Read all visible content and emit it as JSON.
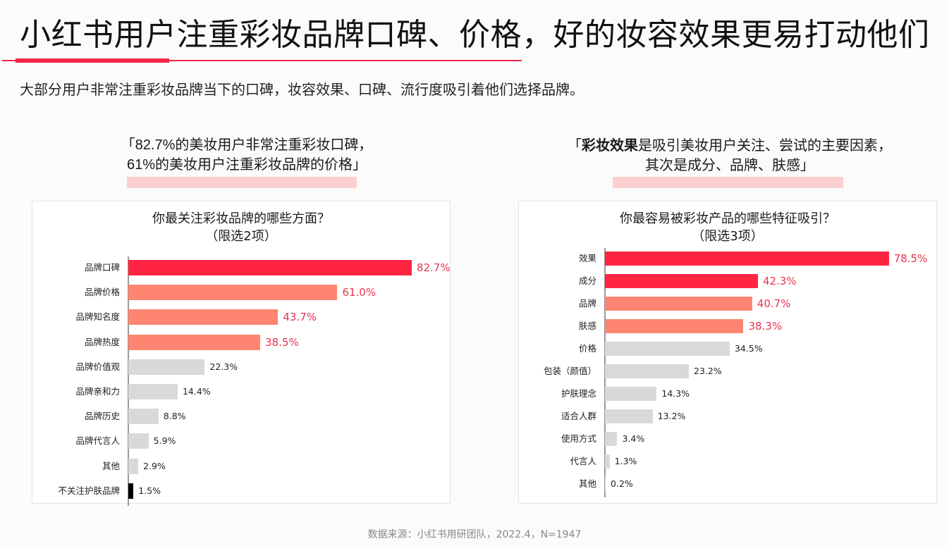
{
  "header": {
    "title": "小红书用户注重彩妆品牌口碑、价格，好的妆容效果更易打动他们",
    "subtitle": "大部分用户非常注重彩妆品牌当下的口碑，妆容效果、口碑、流行度吸引着他们选择品牌。",
    "accent_color": "#f0284a"
  },
  "quotes": {
    "left": {
      "line1": "「82.7%的美妆用户非常注重彩妆口碑，",
      "line2": "61%的美妆用户注重彩妆品牌的价格」"
    },
    "right": {
      "open": "「",
      "bold": "彩妆效果",
      "line1_rest": "是吸引美妆用户关注、尝试的主要因素，",
      "line2": "其次是成分、品牌、肤感」"
    }
  },
  "colors": {
    "top": "#ff2442",
    "high": "#fd8571",
    "low": "#d9d9d9",
    "none": "#000000",
    "value_hot": "#e8344e"
  },
  "chart_data": [
    {
      "type": "bar",
      "orientation": "horizontal",
      "title": "你最关注彩妆品牌的哪些方面？",
      "subtitle": "（限选2项）",
      "xlabel": "",
      "ylabel": "",
      "grid": false,
      "legend": "none",
      "categories": [
        "品牌口碑",
        "品牌价格",
        "品牌知名度",
        "品牌热度",
        "品牌价值观",
        "品牌亲和力",
        "品牌历史",
        "品牌代言人",
        "其他",
        "不关注护肤品牌"
      ],
      "values": [
        82.7,
        61.0,
        43.7,
        38.5,
        22.3,
        14.4,
        8.8,
        5.9,
        2.9,
        1.5
      ],
      "value_labels": [
        "82.7%",
        "61.0%",
        "43.7%",
        "38.5%",
        "22.3%",
        "14.4%",
        "8.8%",
        "5.9%",
        "2.9%",
        "1.5%"
      ],
      "bar_styles": [
        "top",
        "high",
        "high",
        "high",
        "low",
        "low",
        "low",
        "low",
        "low",
        "none"
      ],
      "unit": "%"
    },
    {
      "type": "bar",
      "orientation": "horizontal",
      "title": "你最容易被彩妆产品的哪些特征吸引？",
      "subtitle": "（限选3项）",
      "xlabel": "",
      "ylabel": "",
      "grid": false,
      "legend": "none",
      "categories": [
        "效果",
        "成分",
        "品牌",
        "肤感",
        "价格",
        "包装（颜值）",
        "护肤理念",
        "适合人群",
        "使用方式",
        "代言人",
        "其他"
      ],
      "values": [
        78.5,
        42.3,
        40.7,
        38.3,
        34.5,
        23.2,
        14.3,
        13.2,
        3.4,
        1.3,
        0.2
      ],
      "value_labels": [
        "78.5%",
        "42.3%",
        "40.7%",
        "38.3%",
        "34.5%",
        "23.2%",
        "14.3%",
        "13.2%",
        "3.4%",
        "1.3%",
        "0.2%"
      ],
      "bar_styles": [
        "top",
        "top",
        "high",
        "high",
        "low",
        "low",
        "low",
        "low",
        "low",
        "low",
        "low"
      ],
      "unit": "%"
    }
  ],
  "footer": {
    "source": "数据来源：小红书用研团队，2022.4，N=1947"
  }
}
